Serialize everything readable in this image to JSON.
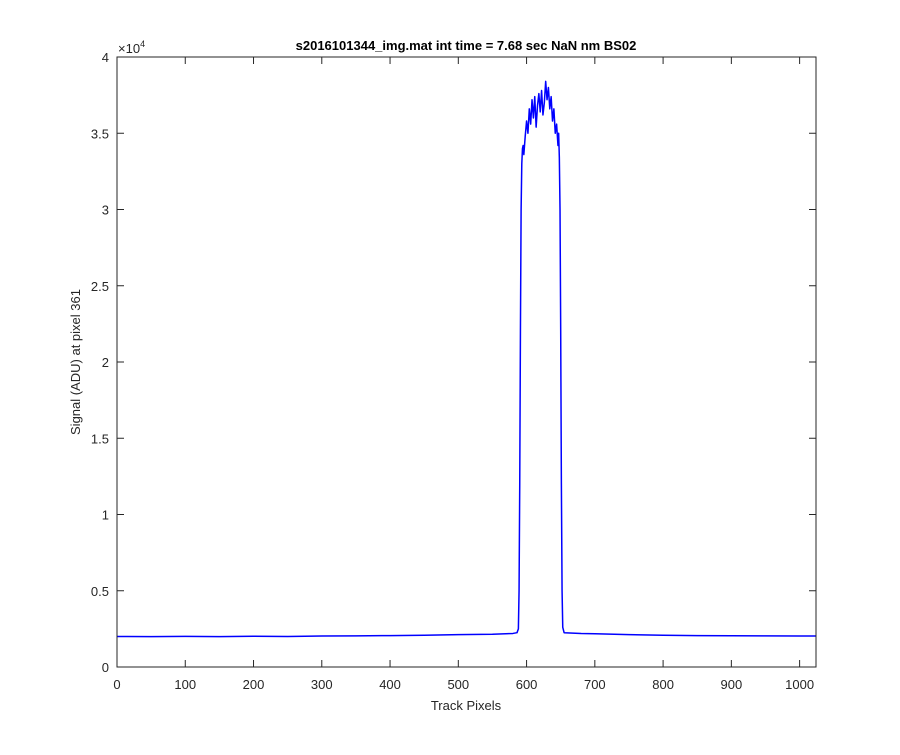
{
  "chart_data": {
    "type": "line",
    "title": "s2016101344_img.mat int time = 7.68 sec  NaN nm BS02",
    "xlabel": "Track Pixels",
    "ylabel": "Signal (ADU) at pixel 361",
    "xlim": [
      0,
      1024
    ],
    "ylim": [
      0,
      40000
    ],
    "x_ticks": [
      0,
      100,
      200,
      300,
      400,
      500,
      600,
      700,
      800,
      900,
      1000
    ],
    "y_ticks": [
      0,
      5000,
      10000,
      15000,
      20000,
      25000,
      30000,
      35000,
      40000
    ],
    "y_tick_labels": [
      "0",
      "0.5",
      "1",
      "1.5",
      "2",
      "2.5",
      "3",
      "3.5",
      "4"
    ],
    "y_exponent_label": "×10",
    "y_exponent_power": "4",
    "grid": false,
    "box": true,
    "series": [
      {
        "color": "#0000ff",
        "points": [
          [
            0,
            2000
          ],
          [
            50,
            1990
          ],
          [
            100,
            2010
          ],
          [
            150,
            1995
          ],
          [
            200,
            2020
          ],
          [
            250,
            2000
          ],
          [
            300,
            2030
          ],
          [
            350,
            2040
          ],
          [
            400,
            2060
          ],
          [
            450,
            2080
          ],
          [
            500,
            2120
          ],
          [
            550,
            2150
          ],
          [
            580,
            2200
          ],
          [
            586,
            2250
          ],
          [
            588,
            2500
          ],
          [
            589,
            5000
          ],
          [
            590,
            12000
          ],
          [
            591,
            22000
          ],
          [
            592,
            30000
          ],
          [
            593,
            33000
          ],
          [
            594,
            34000
          ],
          [
            595,
            34200
          ],
          [
            596,
            33600
          ],
          [
            598,
            34800
          ],
          [
            600,
            35800
          ],
          [
            602,
            35000
          ],
          [
            604,
            36600
          ],
          [
            606,
            35600
          ],
          [
            608,
            37200
          ],
          [
            610,
            36000
          ],
          [
            612,
            37400
          ],
          [
            614,
            35400
          ],
          [
            616,
            36800
          ],
          [
            618,
            37600
          ],
          [
            620,
            36400
          ],
          [
            622,
            37800
          ],
          [
            624,
            36200
          ],
          [
            626,
            37000
          ],
          [
            628,
            38400
          ],
          [
            630,
            37200
          ],
          [
            632,
            38000
          ],
          [
            634,
            36600
          ],
          [
            636,
            37400
          ],
          [
            638,
            35800
          ],
          [
            640,
            36600
          ],
          [
            642,
            35000
          ],
          [
            644,
            35600
          ],
          [
            646,
            34200
          ],
          [
            647,
            35000
          ],
          [
            648,
            33400
          ],
          [
            649,
            30000
          ],
          [
            650,
            22000
          ],
          [
            651,
            12000
          ],
          [
            652,
            5000
          ],
          [
            653,
            2600
          ],
          [
            655,
            2250
          ],
          [
            680,
            2200
          ],
          [
            700,
            2180
          ],
          [
            750,
            2120
          ],
          [
            800,
            2080
          ],
          [
            850,
            2060
          ],
          [
            900,
            2050
          ],
          [
            950,
            2040
          ],
          [
            1000,
            2030
          ],
          [
            1024,
            2030
          ]
        ]
      }
    ]
  }
}
